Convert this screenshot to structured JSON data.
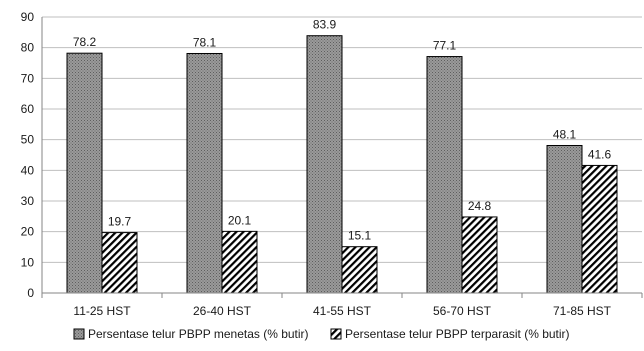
{
  "chart_data": {
    "type": "bar",
    "categories": [
      "11-25 HST",
      "26-40 HST",
      "41-55 HST",
      "56-70 HST",
      "71-85 HST"
    ],
    "series": [
      {
        "name": "Persentase telur PBPP menetas (% butir)",
        "values": [
          78.2,
          78.1,
          83.9,
          77.1,
          48.1
        ],
        "pattern": "dotted-gray"
      },
      {
        "name": "Persentase telur PBPP terparasit (% butir)",
        "values": [
          19.7,
          20.1,
          15.1,
          24.8,
          41.6
        ],
        "pattern": "diagonal-hatch"
      }
    ],
    "data_labels": [
      [
        "78.2",
        "78.1",
        "83.9",
        "77.1",
        "48.1"
      ],
      [
        "19.7",
        "20.1",
        "15.1",
        "24.8",
        "41.6"
      ]
    ],
    "title": "",
    "xlabel": "",
    "ylabel": "",
    "ylim": [
      0,
      90
    ],
    "yticks": [
      0,
      10,
      20,
      30,
      40,
      50,
      60,
      70,
      80,
      90
    ],
    "grid": true,
    "legend": "bottom",
    "colors": {
      "grid": "#bfbfbf",
      "axis": "#868686",
      "bar_fill": "#8c8c8c",
      "bar_stroke": "#000000",
      "hatch": "#000000"
    }
  }
}
